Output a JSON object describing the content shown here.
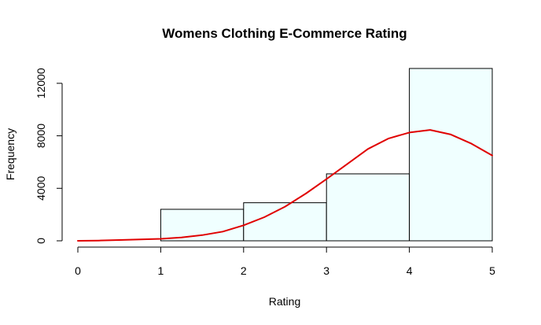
{
  "chart_data": {
    "type": "bar",
    "subtype": "histogram",
    "title": "Womens Clothing E-Commerce Rating",
    "xlabel": "Rating",
    "ylabel": "Frequency",
    "xlim": [
      0,
      5
    ],
    "ylim": [
      0,
      13131
    ],
    "x_ticks": [
      0,
      1,
      2,
      3,
      4,
      5
    ],
    "y_ticks": [
      0,
      4000,
      8000,
      12000
    ],
    "grid": false,
    "legend": "none",
    "bins": [
      {
        "x0": 1,
        "x1": 2,
        "count": 2400
      },
      {
        "x0": 2,
        "x1": 3,
        "count": 2900
      },
      {
        "x0": 3,
        "x1": 4,
        "count": 5100
      },
      {
        "x0": 4,
        "x1": 5,
        "count": 13131
      }
    ],
    "bar_fill": "#f0ffff",
    "bar_stroke": "#000000",
    "density_curve": {
      "color": "#e00000",
      "x": [
        0,
        0.25,
        0.5,
        0.75,
        1,
        1.25,
        1.5,
        1.75,
        2,
        2.25,
        2.5,
        2.75,
        3,
        3.25,
        3.5,
        3.75,
        4,
        4.25,
        4.5,
        4.75,
        5
      ],
      "y": [
        0,
        20,
        60,
        100,
        150,
        260,
        430,
        700,
        1180,
        1800,
        2600,
        3600,
        4700,
        5850,
        7000,
        7800,
        8250,
        8450,
        8100,
        7400,
        6500
      ]
    }
  }
}
